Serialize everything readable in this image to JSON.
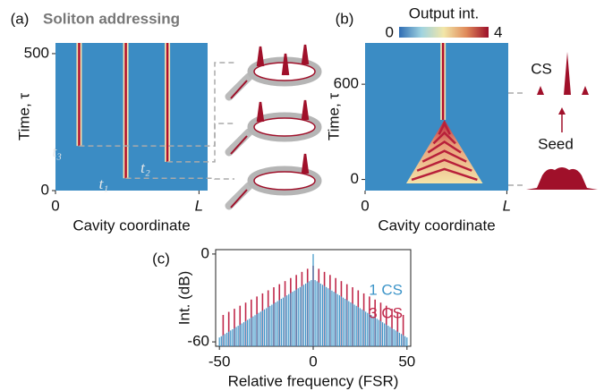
{
  "chart_data": [
    {
      "type": "heatmap",
      "panel_label": "(a)",
      "title": "Soliton addressing",
      "xlabel": "Cavity coordinate",
      "ylabel": "Time, τ",
      "xlim": [
        0,
        1.06
      ],
      "xticks": [
        0,
        {
          "value": 1,
          "label": "L"
        }
      ],
      "ylim": [
        0,
        539
      ],
      "yticks": [
        0,
        500
      ],
      "background": "#3b8cc4",
      "solitons": {
        "positions": [
          0.49,
          0.78,
          0.165
        ],
        "starts": [
          45,
          105,
          163
        ],
        "labels": [
          "t₁",
          "t₂",
          "t₃"
        ],
        "color": "#b0102e"
      }
    },
    {
      "type": "heatmap",
      "panel_label": "(b)",
      "xlabel": "Cavity coordinate",
      "ylabel": "Time, τ",
      "xlim": [
        0,
        1.01
      ],
      "xticks": [
        0,
        {
          "value": 1,
          "label": "L"
        }
      ],
      "ylim": [
        -70,
        860
      ],
      "yticks": [
        0,
        600
      ],
      "background": "#3b8cc4",
      "colorbar": {
        "title": "Output int.",
        "lim": [
          0,
          4
        ],
        "ticks": [
          0,
          4
        ],
        "colors": [
          "#2f6db3",
          "#9fd3e0",
          "#f2e6a8",
          "#e08a5a",
          "#9c0f2a"
        ]
      },
      "seed": {
        "start": -25,
        "end": 375,
        "left": 0.29,
        "right": 0.83
      },
      "solitons": {
        "positions": [
          0.55
        ],
        "starts": [
          375
        ],
        "color": "#b0102e"
      },
      "annotations": [
        "CS",
        "Seed"
      ]
    },
    {
      "type": "stem",
      "panel_label": "(c)",
      "xlabel": "Relative frequency (FSR)",
      "ylabel": "Int. (dB)",
      "xlim": [
        -52,
        52
      ],
      "xticks": [
        -50,
        0,
        50
      ],
      "ylim": [
        -63,
        3
      ],
      "yticks": [
        0,
        -60
      ],
      "series": [
        {
          "name": "1 CS",
          "color": "#3d95c9",
          "x": [
            -50,
            -49,
            -48,
            -47,
            -46,
            -45,
            -44,
            -43,
            -42,
            -41,
            -40,
            -39,
            -38,
            -37,
            -36,
            -35,
            -34,
            -33,
            -32,
            -31,
            -30,
            -29,
            -28,
            -27,
            -26,
            -25,
            -24,
            -23,
            -22,
            -21,
            -20,
            -19,
            -18,
            -17,
            -16,
            -15,
            -14,
            -13,
            -12,
            -11,
            -10,
            -9,
            -8,
            -7,
            -6,
            -5,
            -4,
            -3,
            -2,
            -1,
            0,
            1,
            2,
            3,
            4,
            5,
            6,
            7,
            8,
            9,
            10,
            11,
            12,
            13,
            14,
            15,
            16,
            17,
            18,
            19,
            20,
            21,
            22,
            23,
            24,
            25,
            26,
            27,
            28,
            29,
            30,
            31,
            32,
            33,
            34,
            35,
            36,
            37,
            38,
            39,
            40,
            41,
            42,
            43,
            44,
            45,
            46,
            47,
            48,
            49,
            50
          ],
          "values": [
            -57,
            -56.2,
            -55.4,
            -54.6,
            -53.8,
            -53,
            -52.2,
            -51.4,
            -50.6,
            -49.8,
            -49,
            -48.2,
            -47.4,
            -46.6,
            -45.8,
            -45,
            -44.2,
            -43.4,
            -42.6,
            -41.8,
            -41,
            -40.2,
            -39.4,
            -38.6,
            -37.8,
            -37,
            -36.2,
            -35.4,
            -34.6,
            -33.8,
            -33,
            -32.2,
            -31.4,
            -30.6,
            -29.8,
            -29,
            -28.2,
            -27.4,
            -26.6,
            -25.8,
            -25,
            -24.2,
            -23.4,
            -22.6,
            -21.8,
            -21,
            -20.2,
            -19.4,
            -18.6,
            -17.8,
            0,
            -17.8,
            -18.6,
            -19.4,
            -20.2,
            -21,
            -21.8,
            -22.6,
            -23.4,
            -24.2,
            -25,
            -25.8,
            -26.6,
            -27.4,
            -28.2,
            -29,
            -29.8,
            -30.6,
            -31.4,
            -32.2,
            -33,
            -33.8,
            -34.6,
            -35.4,
            -36.2,
            -37,
            -37.8,
            -38.6,
            -39.4,
            -40.2,
            -41,
            -41.8,
            -42.6,
            -43.4,
            -44.2,
            -45,
            -45.8,
            -46.6,
            -47.4,
            -48.2,
            -49,
            -49.8,
            -50.6,
            -51.4,
            -52.2,
            -53,
            -53.8,
            -54.6,
            -55.4,
            -56.2,
            -57
          ]
        },
        {
          "name": "3 CS",
          "color": "#c0284a",
          "x": [
            -48,
            -45,
            -42,
            -39,
            -36,
            -33,
            -30,
            -27,
            -24,
            -21,
            -18,
            -15,
            -12,
            -9,
            -6,
            -3,
            0,
            3,
            6,
            9,
            12,
            15,
            18,
            21,
            24,
            27,
            30,
            33,
            36,
            39,
            42,
            45,
            48
          ],
          "values": [
            -41.6,
            -39.5,
            -37.4,
            -35.3,
            -33.2,
            -31.1,
            -29,
            -26.9,
            -24.8,
            -22.7,
            -20.6,
            -18.5,
            -16.4,
            -14.3,
            -12.2,
            -10.1,
            -8,
            -10.1,
            -12.2,
            -14.3,
            -16.4,
            -18.5,
            -20.6,
            -22.7,
            -24.8,
            -26.9,
            -29,
            -31.1,
            -33.2,
            -35.3,
            -37.4,
            -39.5,
            -41.6
          ]
        }
      ]
    }
  ]
}
